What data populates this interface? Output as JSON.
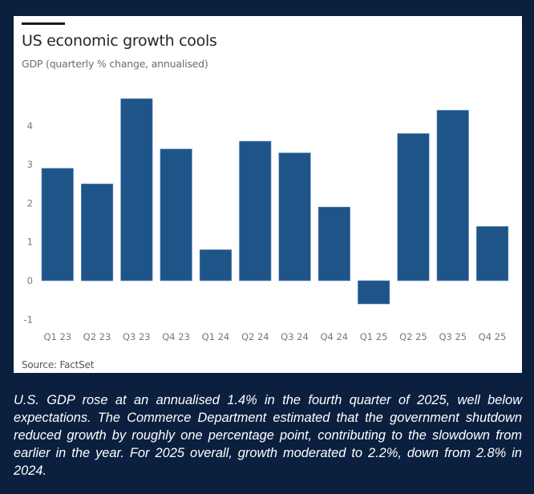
{
  "chart_data": {
    "type": "bar",
    "title": "US economic growth cools",
    "subtitle": "GDP (quarterly % change, annualised)",
    "source": "Source: FactSet",
    "xlabel": "",
    "ylabel": "",
    "categories": [
      "Q1 23",
      "Q2 23",
      "Q3 23",
      "Q4 23",
      "Q1 24",
      "Q2 24",
      "Q3 24",
      "Q4 24",
      "Q1 25",
      "Q2 25",
      "Q3 25",
      "Q4 25"
    ],
    "values": [
      2.9,
      2.5,
      4.7,
      3.4,
      0.8,
      3.6,
      3.3,
      1.9,
      -0.6,
      3.8,
      4.4,
      1.4
    ],
    "ylim": [
      -1.3,
      4.9
    ],
    "yticks": [
      -1,
      0,
      1,
      2,
      3,
      4
    ],
    "grid": false,
    "legend": "none",
    "bar_color": "#1f5489"
  },
  "caption": "U.S. GDP rose at an annualised 1.4% in the fourth quarter of 2025, well below expectations. The Commerce Department estimated that the government shutdown reduced growth by roughly one percentage point, contributing to the slowdown from earlier in the year. For 2025 overall, growth moderated to 2.2%, down from 2.8% in 2024.",
  "colors": {
    "background": "#0b1f3f",
    "panel": "#ffffff",
    "bar": "#1f5489"
  }
}
